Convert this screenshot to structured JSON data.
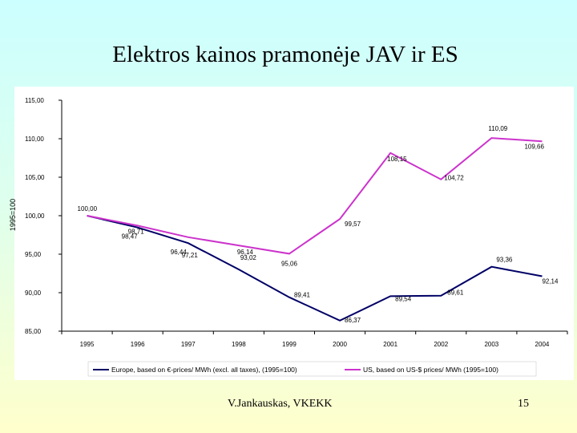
{
  "slide": {
    "title": "Elektros kainos pramonėje JAV ir ES",
    "footer_author": "V.Jankauskas, VKEKK",
    "page_number": "15"
  },
  "chart_data": {
    "type": "line",
    "ylabel": "1995=100",
    "ylim": [
      85,
      115
    ],
    "yticks": [
      "85,00",
      "90,00",
      "95,00",
      "100,00",
      "105,00",
      "110,00",
      "115,00"
    ],
    "categories": [
      "1995",
      "1996",
      "1997",
      "1998",
      "1999",
      "2000",
      "2001",
      "2002",
      "2003",
      "2004"
    ],
    "legend_position": "bottom",
    "grid": false,
    "series": [
      {
        "name": "Europe, based on €-prices/ MWh (excl. all taxes), (1995=100)",
        "color": "#000066",
        "values": [
          100.0,
          98.47,
          96.44,
          93.02,
          89.41,
          86.37,
          89.54,
          89.61,
          93.36,
          92.14
        ],
        "labels": [
          "",
          "98,47",
          "96,44",
          "93,02",
          "89,41",
          "86,37",
          "89,54",
          "89,61",
          "93,36",
          "92,14"
        ]
      },
      {
        "name": "US, based on US-$ prices/ MWh (1995=100)",
        "color": "#cc33cc",
        "values": [
          100.0,
          98.71,
          97.21,
          96.14,
          95.06,
          99.57,
          108.15,
          104.72,
          110.09,
          109.66
        ],
        "labels": [
          "100,00",
          "98,71",
          "97,21",
          "96,14",
          "95,06",
          "99,57",
          "108,15",
          "104,72",
          "110,09",
          "109,66"
        ]
      }
    ]
  }
}
